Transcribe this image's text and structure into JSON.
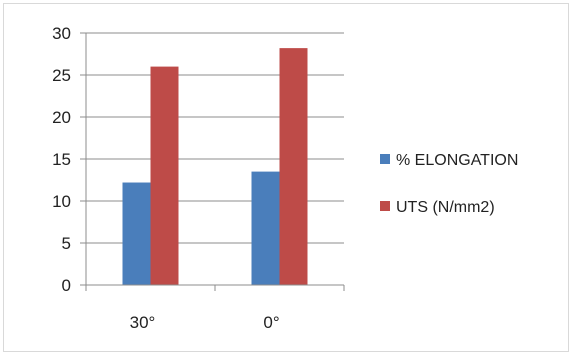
{
  "chart_data": {
    "type": "bar",
    "categories": [
      "30°",
      "0°"
    ],
    "series": [
      {
        "name": "% ELONGATION",
        "values": [
          12.2,
          13.5
        ],
        "color": "#4a7ebb"
      },
      {
        "name": "UTS (N/mm2)",
        "values": [
          26.0,
          28.2
        ],
        "color": "#be4b48"
      }
    ],
    "ylim": [
      0,
      30
    ],
    "yticks": [
      "0",
      "5",
      "10",
      "15",
      "20",
      "25",
      "30"
    ],
    "grid": true,
    "legend_position": "right",
    "title": "",
    "xlabel": "",
    "ylabel": ""
  }
}
